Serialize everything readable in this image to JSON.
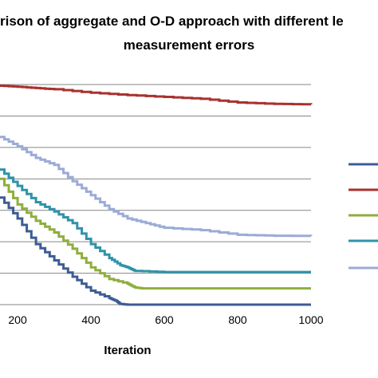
{
  "chart_data": {
    "type": "line",
    "title_line1": "rison of aggregate and O-D approach with different le",
    "title_line2": "measurement errors",
    "xlabel": "Iteration",
    "xlim": [
      152,
      1000
    ],
    "ylim": [
      0,
      100
    ],
    "x_ticks": [
      200,
      400,
      600,
      800,
      1000
    ],
    "y_grid": [
      13.5,
      27,
      40.5,
      54,
      67.5,
      81,
      94.5
    ],
    "grid": true,
    "legend_position": "right",
    "series": [
      {
        "color": "#3D5C94",
        "x": [
          152,
          200,
          250,
          300,
          350,
          400,
          450,
          470,
          480,
          500,
          600,
          700,
          800,
          900,
          1000
        ],
        "y": [
          46,
          37,
          26,
          19,
          12,
          6,
          2.8,
          1.5,
          0.3,
          0,
          0,
          0,
          0,
          0,
          0
        ]
      },
      {
        "color": "#A8322E",
        "x": [
          152,
          200,
          250,
          300,
          400,
          500,
          600,
          700,
          800,
          900,
          1000
        ],
        "y": [
          94,
          93.6,
          93,
          92.5,
          91,
          90,
          89.2,
          88.4,
          86.8,
          86.2,
          86
        ]
      },
      {
        "color": "#8FAE3F",
        "x": [
          152,
          200,
          250,
          300,
          350,
          400,
          450,
          500,
          520,
          540,
          600,
          700,
          800,
          900,
          1000
        ],
        "y": [
          54,
          43,
          36,
          31,
          24,
          16,
          11,
          9,
          7.4,
          7,
          7,
          7,
          7,
          7,
          7
        ]
      },
      {
        "color": "#2E93A8",
        "x": [
          152,
          200,
          250,
          300,
          350,
          400,
          450,
          480,
          500,
          520,
          600,
          700,
          800,
          900,
          1000
        ],
        "y": [
          58,
          51,
          44,
          40,
          35,
          26,
          20,
          17,
          16,
          14.5,
          14,
          14,
          14,
          14,
          14
        ]
      },
      {
        "color": "#9AABD6",
        "x": [
          152,
          200,
          250,
          300,
          350,
          400,
          450,
          500,
          550,
          600,
          700,
          800,
          900,
          1000
        ],
        "y": [
          72,
          68,
          63,
          60,
          53,
          47,
          41,
          37,
          35,
          33,
          32,
          30,
          29.6,
          29.5
        ]
      }
    ]
  }
}
